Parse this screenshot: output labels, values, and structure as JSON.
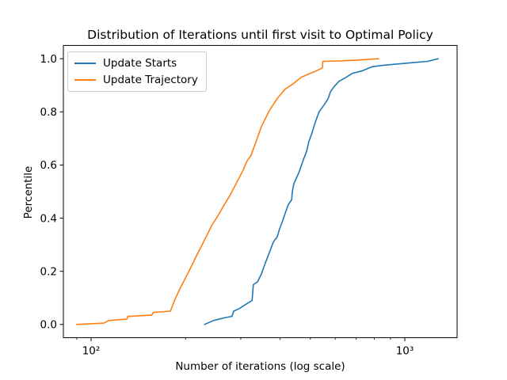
{
  "window": {
    "background": "#ffffff",
    "text_color": "#000000",
    "axis_color": "#000000"
  },
  "chart_data": {
    "type": "line",
    "title": "Distribution of Iterations until first visit to Optimal Policy",
    "xlabel": "Number of iterations (log scale)",
    "ylabel": "Percentile",
    "x_scale": "log",
    "grid": false,
    "legend_position": "upper left",
    "xlim_log10": [
      1.9116,
      3.1667
    ],
    "ylim": [
      -0.05,
      1.05
    ],
    "x_major_ticks": [
      {
        "value": 100,
        "label": "10²"
      },
      {
        "value": 1000,
        "label": "10³"
      }
    ],
    "x_minor_ticks": [
      90,
      200,
      300,
      400,
      500,
      600,
      700,
      800,
      900
    ],
    "y_ticks": [
      {
        "value": 0.0,
        "label": "0.0"
      },
      {
        "value": 0.2,
        "label": "0.2"
      },
      {
        "value": 0.4,
        "label": "0.4"
      },
      {
        "value": 0.6,
        "label": "0.6"
      },
      {
        "value": 0.8,
        "label": "0.8"
      },
      {
        "value": 1.0,
        "label": "1.0"
      }
    ],
    "series": [
      {
        "name": "Update Starts",
        "color": "#1f77b4",
        "points": [
          [
            230,
            0.0
          ],
          [
            246,
            0.015
          ],
          [
            266,
            0.025
          ],
          [
            281,
            0.03
          ],
          [
            285,
            0.05
          ],
          [
            297,
            0.06
          ],
          [
            311,
            0.075
          ],
          [
            326,
            0.09
          ],
          [
            329,
            0.15
          ],
          [
            339,
            0.16
          ],
          [
            349,
            0.19
          ],
          [
            359,
            0.23
          ],
          [
            370,
            0.27
          ],
          [
            381,
            0.31
          ],
          [
            392,
            0.33
          ],
          [
            399,
            0.36
          ],
          [
            408,
            0.39
          ],
          [
            416,
            0.42
          ],
          [
            425,
            0.45
          ],
          [
            436,
            0.47
          ],
          [
            438,
            0.5
          ],
          [
            443,
            0.53
          ],
          [
            459,
            0.57
          ],
          [
            475,
            0.62
          ],
          [
            486,
            0.65
          ],
          [
            495,
            0.69
          ],
          [
            506,
            0.72
          ],
          [
            518,
            0.76
          ],
          [
            533,
            0.8
          ],
          [
            556,
            0.83
          ],
          [
            570,
            0.85
          ],
          [
            579,
            0.875
          ],
          [
            595,
            0.895
          ],
          [
            617,
            0.915
          ],
          [
            650,
            0.93
          ],
          [
            681,
            0.945
          ],
          [
            734,
            0.955
          ],
          [
            787,
            0.97
          ],
          [
            849,
            0.975
          ],
          [
            1054,
            0.985
          ],
          [
            1183,
            0.99
          ],
          [
            1277,
            1.0
          ]
        ]
      },
      {
        "name": "Update Trajectory",
        "color": "#ff7f0e",
        "points": [
          [
            90,
            0.0
          ],
          [
            110,
            0.005
          ],
          [
            114,
            0.015
          ],
          [
            130,
            0.02
          ],
          [
            131,
            0.03
          ],
          [
            156,
            0.035
          ],
          [
            158,
            0.045
          ],
          [
            179,
            0.05
          ],
          [
            186,
            0.1
          ],
          [
            193,
            0.14
          ],
          [
            201,
            0.18
          ],
          [
            209,
            0.22
          ],
          [
            217,
            0.26
          ],
          [
            226,
            0.3
          ],
          [
            235,
            0.34
          ],
          [
            243,
            0.375
          ],
          [
            254,
            0.41
          ],
          [
            264,
            0.445
          ],
          [
            277,
            0.485
          ],
          [
            290,
            0.53
          ],
          [
            305,
            0.58
          ],
          [
            314,
            0.615
          ],
          [
            323,
            0.635
          ],
          [
            335,
            0.685
          ],
          [
            349,
            0.745
          ],
          [
            370,
            0.805
          ],
          [
            392,
            0.85
          ],
          [
            415,
            0.885
          ],
          [
            440,
            0.905
          ],
          [
            467,
            0.93
          ],
          [
            524,
            0.955
          ],
          [
            546,
            0.965
          ],
          [
            548,
            0.99
          ],
          [
            624,
            0.992
          ],
          [
            700,
            0.995
          ],
          [
            825,
            1.0
          ]
        ]
      }
    ]
  }
}
